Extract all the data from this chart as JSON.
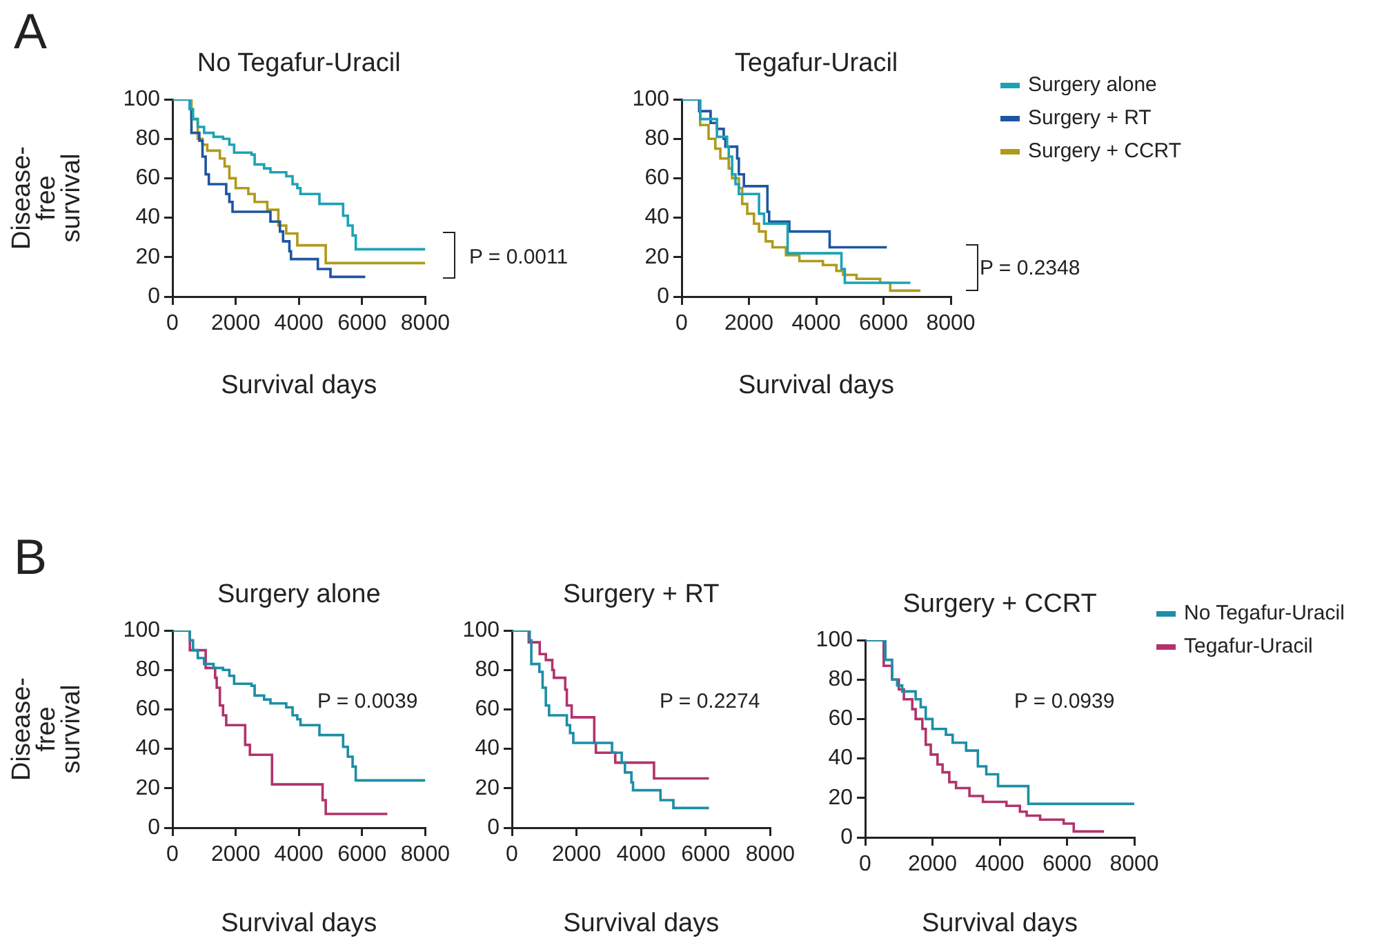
{
  "chart_data": [
    {
      "type": "step",
      "title": "No Tegafur-Uracil",
      "xlabel": "Survival days",
      "ylabel": "Disease-free survival",
      "xlim": [
        0,
        8000
      ],
      "xticks": [
        0,
        2000,
        4000,
        6000,
        8000
      ],
      "ylim": [
        0,
        100
      ],
      "yticks": [
        0,
        20,
        40,
        60,
        80,
        100
      ],
      "grid": false,
      "legend": false,
      "marker": "none",
      "annotations": [
        "A",
        "P = 0.0011"
      ],
      "series": [
        {
          "color": "#1ba3b5",
          "x": [
            0,
            480,
            550,
            650,
            800,
            1000,
            1300,
            1600,
            1800,
            1950,
            2500,
            2600,
            2900,
            3100,
            3600,
            3800,
            3950,
            4050,
            4600,
            4650,
            5350,
            5400,
            5550,
            5700,
            5800,
            8000
          ],
          "values": [
            100,
            100,
            95,
            90,
            86,
            83,
            81,
            80,
            77,
            73,
            72,
            67,
            65,
            63,
            61,
            57,
            55,
            52,
            52,
            47,
            47,
            41,
            36,
            31,
            24,
            24
          ]
        },
        {
          "color": "#1f55a0",
          "x": [
            0,
            500,
            550,
            600,
            850,
            950,
            1050,
            1150,
            1700,
            1800,
            1900,
            3100,
            3400,
            3500,
            3700,
            3750,
            4600,
            5000,
            6100
          ],
          "values": [
            100,
            100,
            95,
            83,
            79,
            71,
            62,
            57,
            52,
            48,
            43,
            38,
            33,
            28,
            23,
            19,
            14,
            10,
            10
          ]
        },
        {
          "color": "#b09a1a",
          "x": [
            0,
            520,
            600,
            800,
            950,
            1100,
            1500,
            1650,
            1800,
            2000,
            2400,
            2600,
            3000,
            3350,
            3600,
            3950,
            4850,
            8000
          ],
          "values": [
            100,
            100,
            90,
            80,
            77,
            74,
            70,
            66,
            60,
            55,
            52,
            48,
            44,
            36,
            32,
            26,
            17,
            17
          ]
        }
      ]
    },
    {
      "type": "step",
      "title": "Tegafur-Uracil",
      "xlabel": "Survival days",
      "xlim": [
        0,
        8000
      ],
      "xticks": [
        0,
        2000,
        4000,
        6000,
        8000
      ],
      "ylim": [
        0,
        100
      ],
      "yticks": [
        0,
        20,
        40,
        60,
        80,
        100
      ],
      "grid": false,
      "legend": "top right",
      "marker": "none",
      "annotations": [
        "P = 0.2348"
      ],
      "series": [
        {
          "name": "Surgery alone",
          "color": "#1ba3b5",
          "x": [
            0,
            450,
            550,
            1050,
            1350,
            1400,
            1500,
            1600,
            1700,
            2300,
            2450,
            3150,
            4750,
            4850,
            6800
          ],
          "values": [
            100,
            100,
            90,
            81,
            76,
            71,
            62,
            57,
            52,
            42,
            37,
            22,
            14,
            7,
            7
          ]
        },
        {
          "name": "Surgery + RT",
          "color": "#1f55a0",
          "x": [
            0,
            500,
            520,
            860,
            1050,
            1250,
            1300,
            1650,
            1700,
            1850,
            2550,
            2600,
            3200,
            4400,
            6100
          ],
          "values": [
            100,
            100,
            94,
            88,
            85,
            80,
            76,
            70,
            62,
            56,
            43,
            38,
            33,
            25,
            25
          ]
        },
        {
          "name": "Surgery + CCRT",
          "color": "#b09a1a",
          "x": [
            0,
            450,
            550,
            800,
            1000,
            1150,
            1400,
            1500,
            1700,
            1800,
            1950,
            2150,
            2300,
            2500,
            2700,
            3100,
            3500,
            4200,
            4600,
            4800,
            5200,
            5900,
            6200,
            7100
          ],
          "values": [
            100,
            100,
            87,
            80,
            75,
            70,
            65,
            60,
            55,
            47,
            42,
            37,
            33,
            28,
            25,
            21,
            18,
            16,
            13,
            11,
            9,
            7,
            3,
            3
          ]
        }
      ]
    },
    {
      "type": "step",
      "title": "Surgery alone",
      "xlabel": "Survival days",
      "ylabel": "Disease-free survival",
      "xlim": [
        0,
        8000
      ],
      "xticks": [
        0,
        2000,
        4000,
        6000,
        8000
      ],
      "ylim": [
        0,
        100
      ],
      "yticks": [
        0,
        20,
        40,
        60,
        80,
        100
      ],
      "grid": false,
      "legend": false,
      "marker": "none",
      "annotations": [
        "B",
        "P = 0.0039"
      ],
      "series": [
        {
          "color": "#1c8ea6",
          "x": [
            0,
            480,
            550,
            650,
            800,
            1000,
            1300,
            1600,
            1800,
            1950,
            2500,
            2600,
            2900,
            3100,
            3600,
            3800,
            3950,
            4050,
            4600,
            4650,
            5350,
            5400,
            5550,
            5700,
            5800,
            8000
          ],
          "values": [
            100,
            100,
            95,
            90,
            86,
            83,
            81,
            80,
            77,
            73,
            72,
            67,
            65,
            63,
            61,
            57,
            55,
            52,
            52,
            47,
            47,
            41,
            36,
            31,
            24,
            24
          ]
        },
        {
          "color": "#b2336b",
          "x": [
            0,
            450,
            550,
            1050,
            1350,
            1400,
            1500,
            1600,
            1700,
            2300,
            2450,
            3150,
            4750,
            4850,
            6800
          ],
          "values": [
            100,
            100,
            90,
            81,
            76,
            71,
            62,
            57,
            52,
            42,
            37,
            22,
            14,
            7,
            7
          ]
        }
      ]
    },
    {
      "type": "step",
      "title": "Surgery + RT",
      "xlabel": "Survival days",
      "xlim": [
        0,
        8000
      ],
      "xticks": [
        0,
        2000,
        4000,
        6000,
        8000
      ],
      "ylim": [
        0,
        100
      ],
      "yticks": [
        0,
        20,
        40,
        60,
        80,
        100
      ],
      "grid": false,
      "legend": false,
      "marker": "none",
      "annotations": [
        "P = 0.2274"
      ],
      "series": [
        {
          "color": "#1c8ea6",
          "x": [
            0,
            500,
            550,
            600,
            850,
            950,
            1050,
            1150,
            1700,
            1800,
            1900,
            3100,
            3400,
            3500,
            3700,
            3750,
            4600,
            5000,
            6100
          ],
          "values": [
            100,
            100,
            95,
            83,
            79,
            71,
            62,
            57,
            52,
            48,
            43,
            38,
            33,
            28,
            23,
            19,
            14,
            10,
            10
          ]
        },
        {
          "color": "#b2336b",
          "x": [
            0,
            500,
            520,
            860,
            1050,
            1250,
            1300,
            1650,
            1700,
            1850,
            2550,
            2600,
            3200,
            4400,
            6100
          ],
          "values": [
            100,
            100,
            94,
            88,
            85,
            80,
            76,
            70,
            62,
            56,
            43,
            38,
            33,
            25,
            25
          ]
        }
      ]
    },
    {
      "type": "step",
      "title": "Surgery + CCRT",
      "xlabel": "Survival days",
      "xlim": [
        0,
        8000
      ],
      "xticks": [
        0,
        2000,
        4000,
        6000,
        8000
      ],
      "ylim": [
        0,
        100
      ],
      "yticks": [
        0,
        20,
        40,
        60,
        80,
        100
      ],
      "grid": false,
      "legend": "top right",
      "marker": "none",
      "annotations": [
        "P = 0.0939"
      ],
      "series": [
        {
          "name": "No Tegafur-Uracil",
          "color": "#1c8ea6",
          "x": [
            0,
            520,
            600,
            800,
            950,
            1100,
            1500,
            1650,
            1800,
            2000,
            2400,
            2600,
            3000,
            3350,
            3600,
            3950,
            4850,
            8000
          ],
          "values": [
            100,
            100,
            90,
            80,
            77,
            74,
            70,
            66,
            60,
            55,
            52,
            48,
            44,
            36,
            32,
            26,
            17,
            17
          ]
        },
        {
          "name": "Tegafur-Uracil",
          "color": "#b2336b",
          "x": [
            0,
            450,
            550,
            800,
            1000,
            1150,
            1400,
            1500,
            1700,
            1800,
            1950,
            2150,
            2300,
            2500,
            2700,
            3100,
            3500,
            4200,
            4600,
            4800,
            5200,
            5900,
            6200,
            7100
          ],
          "values": [
            100,
            100,
            87,
            80,
            75,
            70,
            65,
            60,
            55,
            47,
            42,
            37,
            33,
            28,
            25,
            21,
            18,
            16,
            13,
            11,
            9,
            7,
            3,
            3
          ]
        }
      ]
    }
  ]
}
